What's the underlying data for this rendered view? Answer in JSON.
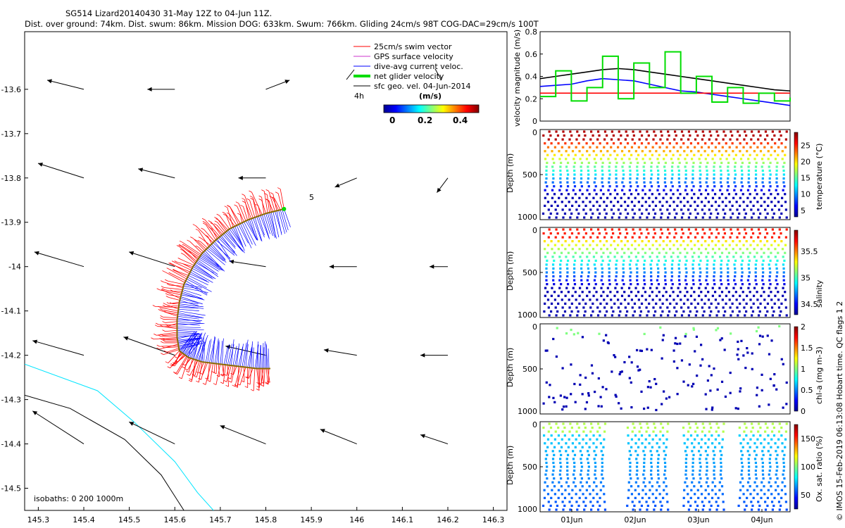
{
  "title": {
    "line1": "SG514 Lizard20140430 31-May 12Z to 04-Jun 11Z.",
    "line2": "Dist. over ground: 74km. Dist. swum: 86km. Mission DOG: 633km. Swum: 766km. Gliding 24cm/s 98T COG-DAC=29cm/s 100T"
  },
  "credit": "© IMOS 15-Feb-2019 06:13:08 Hobart time. QC flags 1  2",
  "colors": {
    "swim": "#ff0000",
    "gps": "#cc33cc",
    "dac": "#0000ff",
    "net": "#00dd00",
    "sfc": "#000000",
    "isobath0": "#00e5ff",
    "isobath200": "#000000"
  },
  "chart_data": [
    {
      "type": "map",
      "xlim": [
        145.27,
        146.33
      ],
      "ylim": [
        -14.55,
        -13.47
      ],
      "xticks": [
        "145.3",
        "145.4",
        "145.5",
        "145.6",
        "145.7",
        "145.8",
        "145.9",
        "146",
        "146.1",
        "146.2",
        "146.3"
      ],
      "yticks": [
        "-13.6",
        "-13.7",
        "-13.8",
        "-13.9",
        "-14",
        "-14.1",
        "-14.2",
        "-14.3",
        "-14.4",
        "-14.5"
      ],
      "legend": [
        "25cm/s swim vector",
        "GPS surface velocity",
        "dive-avg current veloc.",
        "net glider velocity",
        "sfc geo. vel. 04-Jun-2014"
      ],
      "legend_time_label": "4h",
      "colorbar": {
        "label": "(m/s)",
        "ticks": [
          "0",
          "0.2",
          "0.4"
        ],
        "range": [
          0,
          0.5
        ]
      },
      "day_marker": "5",
      "isobath_label": "isobaths: 0   200  1000m",
      "glider_track": {
        "lon": [
          145.84,
          145.8,
          145.76,
          145.72,
          145.69,
          145.66,
          145.64,
          145.62,
          145.61,
          145.605,
          145.605,
          145.61,
          145.63,
          145.66,
          145.7,
          145.74,
          145.78,
          145.81
        ],
        "lat": [
          -13.87,
          -13.88,
          -13.895,
          -13.915,
          -13.94,
          -13.97,
          -14.0,
          -14.04,
          -14.08,
          -14.12,
          -14.16,
          -14.19,
          -14.205,
          -14.215,
          -14.22,
          -14.225,
          -14.23,
          -14.23
        ]
      },
      "sfc_current_vectors": [
        {
          "lon": 145.4,
          "lat": -13.6,
          "u": -0.2,
          "v": 0.05
        },
        {
          "lon": 145.6,
          "lat": -13.6,
          "u": -0.15,
          "v": 0.0
        },
        {
          "lon": 145.8,
          "lat": -13.6,
          "u": 0.13,
          "v": 0.05
        },
        {
          "lon": 145.4,
          "lat": -13.8,
          "u": -0.25,
          "v": 0.08
        },
        {
          "lon": 145.6,
          "lat": -13.8,
          "u": -0.2,
          "v": 0.05
        },
        {
          "lon": 145.8,
          "lat": -13.8,
          "u": -0.15,
          "v": 0.0
        },
        {
          "lon": 146.0,
          "lat": -13.8,
          "u": -0.12,
          "v": -0.05
        },
        {
          "lon": 146.2,
          "lat": -13.8,
          "u": -0.06,
          "v": -0.08
        },
        {
          "lon": 145.4,
          "lat": -14.0,
          "u": -0.27,
          "v": 0.08
        },
        {
          "lon": 145.6,
          "lat": -14.0,
          "u": -0.25,
          "v": 0.08
        },
        {
          "lon": 145.8,
          "lat": -14.0,
          "u": -0.2,
          "v": 0.03
        },
        {
          "lon": 146.0,
          "lat": -14.0,
          "u": -0.15,
          "v": 0.0
        },
        {
          "lon": 146.2,
          "lat": -14.0,
          "u": -0.1,
          "v": 0.0
        },
        {
          "lon": 145.4,
          "lat": -14.2,
          "u": -0.28,
          "v": 0.08
        },
        {
          "lon": 145.6,
          "lat": -14.2,
          "u": -0.28,
          "v": 0.1
        },
        {
          "lon": 145.8,
          "lat": -14.2,
          "u": -0.22,
          "v": 0.05
        },
        {
          "lon": 146.0,
          "lat": -14.2,
          "u": -0.18,
          "v": 0.03
        },
        {
          "lon": 146.2,
          "lat": -14.2,
          "u": -0.15,
          "v": 0.0
        },
        {
          "lon": 145.4,
          "lat": -14.4,
          "u": -0.28,
          "v": 0.18
        },
        {
          "lon": 145.6,
          "lat": -14.4,
          "u": -0.25,
          "v": 0.12
        },
        {
          "lon": 145.8,
          "lat": -14.4,
          "u": -0.25,
          "v": 0.1
        },
        {
          "lon": 146.0,
          "lat": -14.4,
          "u": -0.2,
          "v": 0.08
        },
        {
          "lon": 146.2,
          "lat": -14.4,
          "u": -0.15,
          "v": 0.05
        }
      ],
      "isobath_0": {
        "lon": [
          145.27,
          145.43,
          145.51,
          145.6,
          145.65,
          145.685
        ],
        "lat": [
          -14.22,
          -14.28,
          -14.35,
          -14.44,
          -14.51,
          -14.55
        ]
      },
      "isobath_200": {
        "lon": [
          145.27,
          145.37,
          145.49,
          145.57,
          145.62
        ],
        "lat": [
          -14.29,
          -14.32,
          -14.39,
          -14.47,
          -14.55
        ]
      }
    },
    {
      "type": "line",
      "ylabel": "velocity magnitude (m/s)",
      "ylim": [
        0,
        0.8
      ],
      "yticks": [
        "0",
        "0.2",
        "0.4",
        "0.6",
        "0.8"
      ],
      "x": [
        0,
        0.25,
        0.5,
        0.75,
        1.0,
        1.25,
        1.5,
        1.75,
        2.0,
        2.25,
        2.5,
        2.75,
        3.0,
        3.25,
        3.5,
        3.75,
        4.0
      ],
      "series": [
        {
          "name": "sfc geo. vel.",
          "values": [
            0.38,
            0.4,
            0.42,
            0.44,
            0.46,
            0.47,
            0.46,
            0.44,
            0.42,
            0.4,
            0.38,
            0.36,
            0.34,
            0.32,
            0.3,
            0.28,
            0.27
          ]
        },
        {
          "name": "dive-avg current",
          "values": [
            0.31,
            0.32,
            0.33,
            0.36,
            0.38,
            0.37,
            0.36,
            0.33,
            0.3,
            0.27,
            0.26,
            0.24,
            0.22,
            0.2,
            0.18,
            0.16,
            0.14
          ]
        },
        {
          "name": "swim (25cm/s)",
          "values": [
            0.25,
            0.25,
            0.25,
            0.25,
            0.25,
            0.25,
            0.25,
            0.25,
            0.25,
            0.25,
            0.25,
            0.25,
            0.25,
            0.25,
            0.25,
            0.25,
            0.25
          ]
        },
        {
          "name": "net glider",
          "values": [
            0.22,
            0.45,
            0.18,
            0.3,
            0.58,
            0.2,
            0.52,
            0.3,
            0.62,
            0.25,
            0.4,
            0.17,
            0.3,
            0.16,
            0.25,
            0.18,
            0.21
          ]
        }
      ]
    },
    {
      "type": "scatter",
      "ylabel": "Depth (m)",
      "yticks": [
        "0",
        "500",
        "1000"
      ],
      "cbar_label": "temperature (°C)",
      "cbar_ticks": [
        "5",
        "10",
        "15",
        "20",
        "25"
      ],
      "cbar_range": [
        3,
        29
      ],
      "pattern": "yo",
      "dives": 35
    },
    {
      "type": "scatter",
      "ylabel": "Depth (m)",
      "yticks": [
        "0",
        "500",
        "1000"
      ],
      "cbar_label": "salinity",
      "cbar_ticks": [
        "34.5",
        "35",
        "35.5"
      ],
      "cbar_range": [
        34.3,
        35.9
      ],
      "pattern": "yo",
      "dives": 35
    },
    {
      "type": "scatter",
      "ylabel": "Depth (m)",
      "yticks": [
        "0",
        "500",
        "1000"
      ],
      "cbar_label": "chl-a (mg m-3)",
      "cbar_ticks": [
        "0",
        "0.5",
        "1",
        "1.5",
        "2"
      ],
      "cbar_range": [
        0,
        2
      ],
      "pattern": "sparse",
      "dives": 35
    },
    {
      "type": "scatter",
      "ylabel": "Depth (m)",
      "yticks": [
        "0",
        "500",
        "1000"
      ],
      "cbar_label": "Ox. sat. ratio (%)",
      "cbar_ticks": [
        "50",
        "100",
        "150"
      ],
      "cbar_range": [
        25,
        175
      ],
      "pattern": "yo-gaps",
      "dives": 35
    },
    {
      "type": "axis",
      "xticks": [
        "01Jun",
        "02Jun",
        "03Jun",
        "04Jun"
      ]
    }
  ]
}
